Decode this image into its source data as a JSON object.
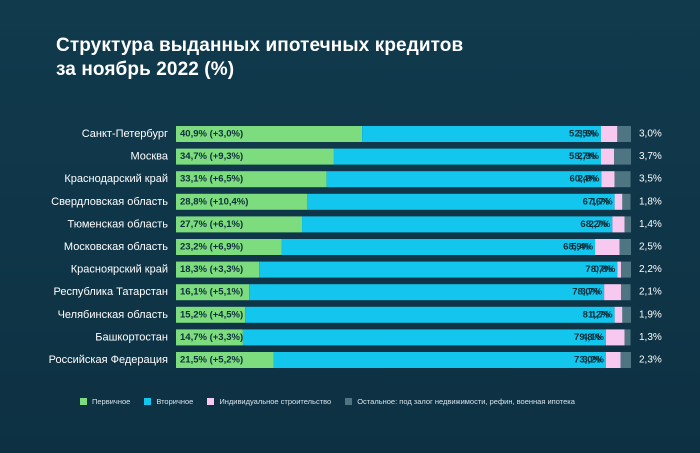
{
  "title_lines": [
    "Структура выданных ипотечных кредитов",
    "за ноябрь 2022 (%)"
  ],
  "colors": {
    "primary": "#7ddc7e",
    "secondary": "#13c6ee",
    "individual": "#f7c9f0",
    "other": "#4f7583",
    "background": "#0f3446"
  },
  "chart_data": {
    "type": "bar",
    "orientation": "horizontal",
    "stacked": true,
    "title": "Структура выданных ипотечных кредитов за ноябрь 2022 (%)",
    "xlim": [
      0,
      100
    ],
    "categories": [
      "Санкт-Петербург",
      "Москва",
      "Краснодарский край",
      "Свердловская область",
      "Тюменская область",
      "Московская область",
      "Красноярский край",
      "Республика Татарстан",
      "Челябинская область",
      "Башкортостан",
      "Российская Федерация"
    ],
    "series": [
      {
        "name": "Первичное",
        "color": "#7ddc7e",
        "values": [
          40.9,
          34.7,
          33.1,
          28.8,
          27.7,
          23.2,
          18.3,
          16.1,
          15.2,
          14.7,
          21.5
        ],
        "labels": [
          "40,9% (+3,0%)",
          "34,7% (+9,3%)",
          "33,1% (+6,5%)",
          "28,8% (+10,4%)",
          "27,7% (+6,1%)",
          "23,2% (+6,9%)",
          "18,3% (+3,3%)",
          "16,1% (+5,1%)",
          "15,2% (+4,5%)",
          "14,7% (+3,3%)",
          "21,5% (+5,2%)"
        ]
      },
      {
        "name": "Вторичное",
        "color": "#13c6ee",
        "values": [
          52.5,
          58.7,
          60.4,
          67.6,
          68.2,
          68.9,
          78.7,
          78.0,
          81.2,
          79.8,
          73.0
        ],
        "labels": [
          "52,5%",
          "58,7%",
          "60,4%",
          "67,6%",
          "68,2%",
          "68,9%",
          "78,7%",
          "78,0%",
          "81,2%",
          "79,8%",
          "73,0%"
        ]
      },
      {
        "name": "Индивидуальное строительство",
        "color": "#f7c9f0",
        "values": [
          3.6,
          2.9,
          2.9,
          1.7,
          2.7,
          5.4,
          0.8,
          3.7,
          1.7,
          4.1,
          3.2
        ],
        "labels": [
          "3,6%",
          "2,9%",
          "2,9%",
          "1,7%",
          "2,7%",
          "5,4%",
          "0,8%",
          "3,7%",
          "1,7%",
          "4,1%",
          "3,2%"
        ]
      },
      {
        "name": "Остальное: под залог недвижимости, рефин, военная ипотека",
        "color": "#4f7583",
        "values": [
          3.0,
          3.7,
          3.5,
          1.8,
          1.4,
          2.5,
          2.2,
          2.1,
          1.9,
          1.3,
          2.3
        ],
        "labels": [
          "3,0%",
          "3,7%",
          "3,5%",
          "1,8%",
          "1,4%",
          "2,5%",
          "2,2%",
          "2,1%",
          "1,9%",
          "1,3%",
          "2,3%"
        ]
      }
    ],
    "legend_position": "bottom",
    "grid": false
  }
}
